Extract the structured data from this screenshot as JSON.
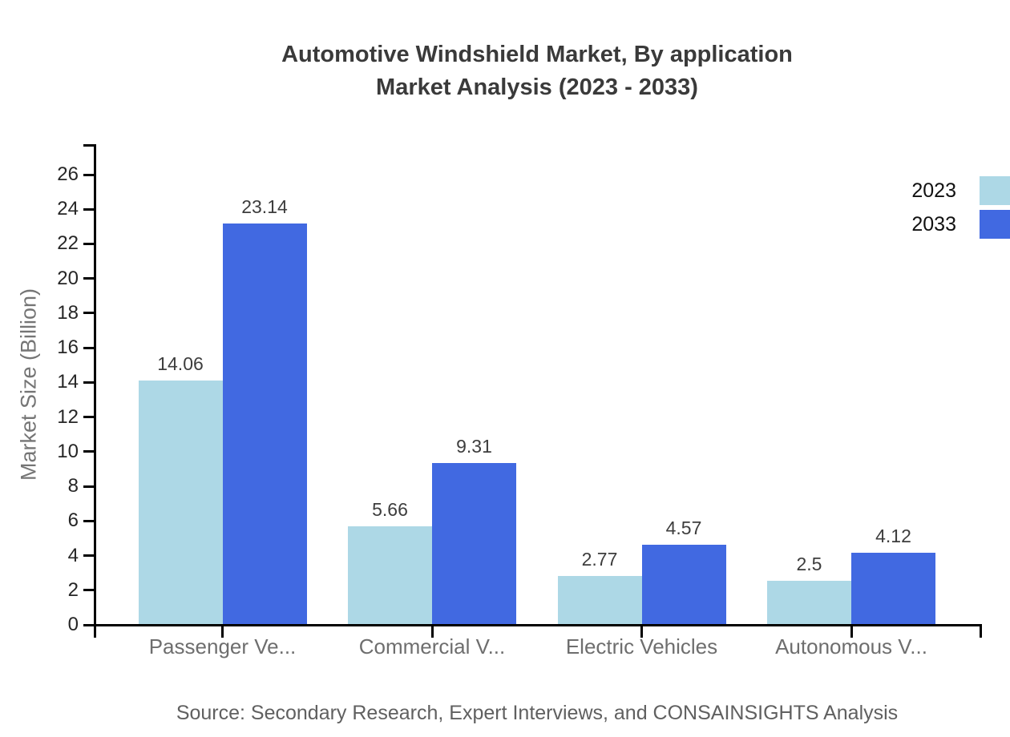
{
  "title": {
    "line1": "Automotive Windshield Market, By application",
    "line2": "Market Analysis (2023 - 2033)"
  },
  "source": "Source: Secondary Research, Expert Interviews, and CONSAINSIGHTS Analysis",
  "chart_data": {
    "type": "bar",
    "title": "Automotive Windshield Market, By application Market Analysis (2023 - 2033)",
    "categories": [
      "Passenger Ve...",
      "Commercial V...",
      "Electric Vehicles",
      "Autonomous V..."
    ],
    "series": [
      {
        "name": "2023",
        "color": "#ADD8E6",
        "values": [
          14.06,
          5.66,
          2.77,
          2.5
        ]
      },
      {
        "name": "2033",
        "color": "#4169E1",
        "values": [
          23.14,
          9.31,
          4.57,
          4.12
        ]
      }
    ],
    "value_labels": [
      [
        "14.06",
        "5.66",
        "2.77",
        "2.5"
      ],
      [
        "23.14",
        "9.31",
        "4.57",
        "4.12"
      ]
    ],
    "xlabel": "",
    "ylabel": "Market Size (Billion)",
    "ylim": [
      0,
      26
    ],
    "yticks": [
      0,
      2,
      4,
      6,
      8,
      10,
      12,
      14,
      16,
      18,
      20,
      22,
      24,
      26
    ],
    "grid": false,
    "legend_position": "top-right"
  }
}
